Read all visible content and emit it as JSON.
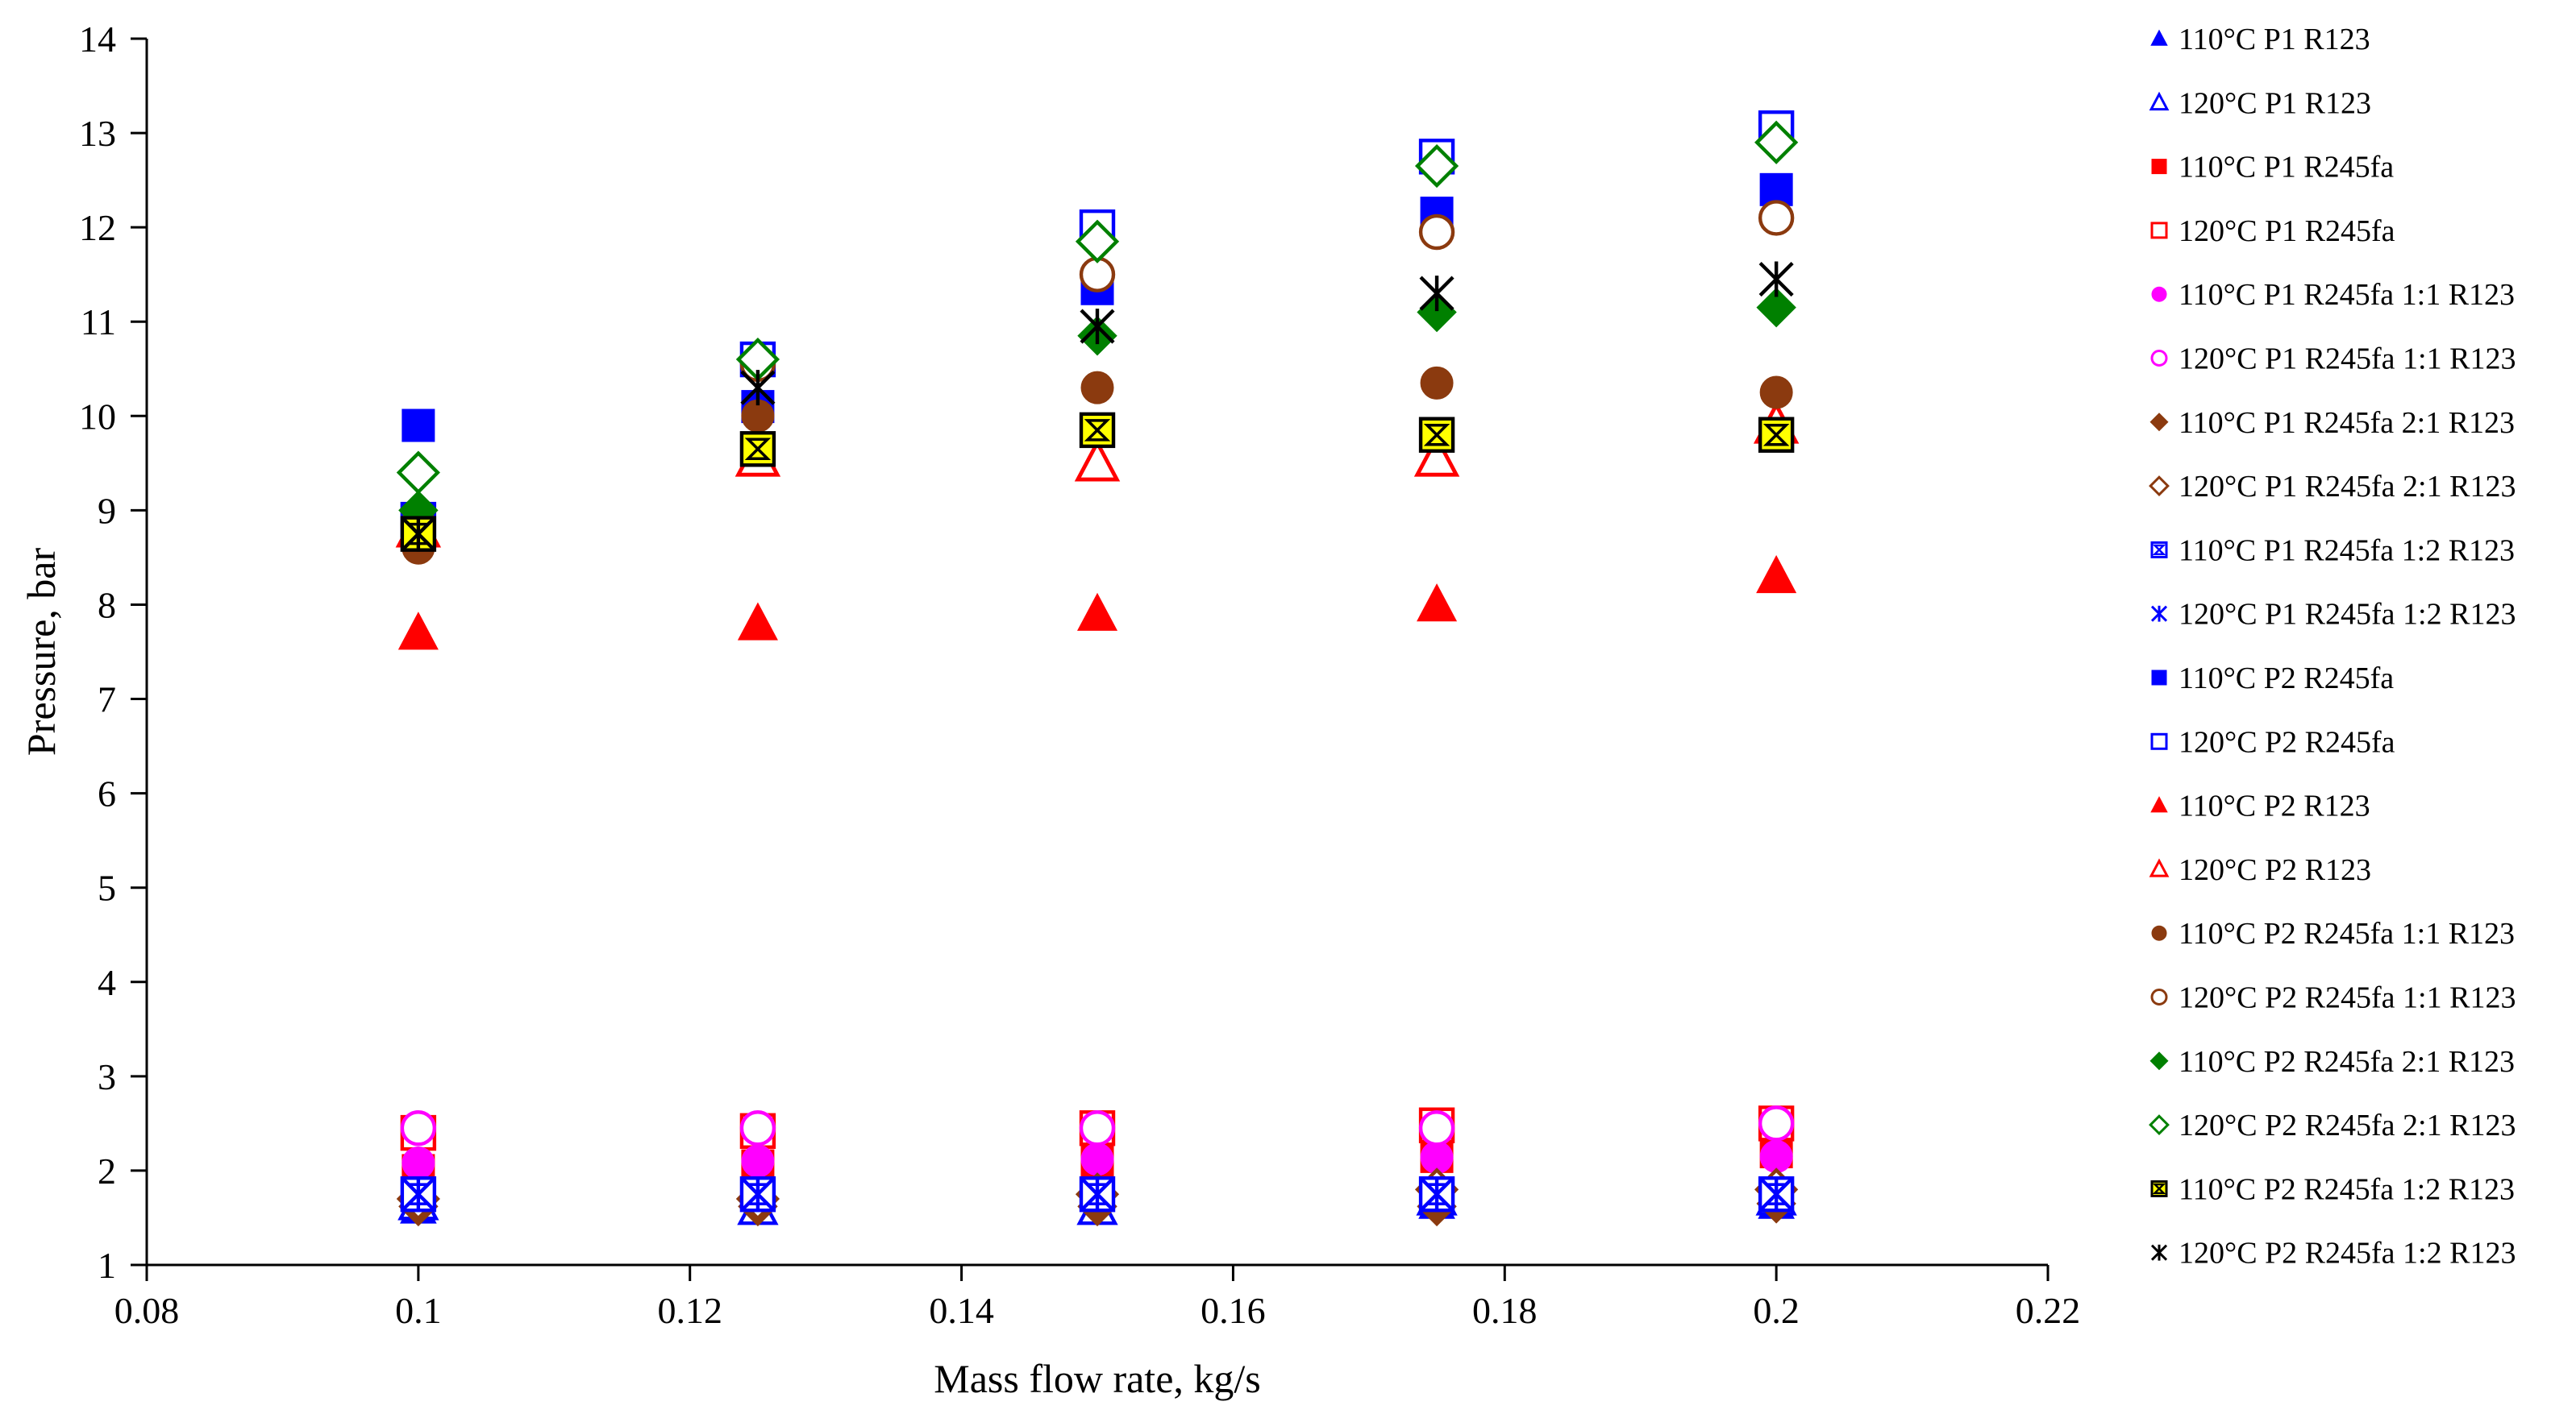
{
  "chart_data": {
    "type": "scatter",
    "title": "",
    "xlabel": "Mass flow rate, kg/s",
    "ylabel": "Pressure, bar",
    "xlim": [
      0.08,
      0.22
    ],
    "ylim": [
      1,
      14
    ],
    "xticks": [
      0.08,
      0.1,
      0.12,
      0.14,
      0.16,
      0.18,
      0.2,
      0.22
    ],
    "xtick_labels": [
      "0.08",
      "0.1",
      "0.12",
      "0.14",
      "0.16",
      "0.18",
      "0.2",
      "0.22"
    ],
    "yticks": [
      1,
      2,
      3,
      4,
      5,
      6,
      7,
      8,
      9,
      10,
      11,
      12,
      13,
      14
    ],
    "ytick_labels": [
      "1",
      "2",
      "3",
      "4",
      "5",
      "6",
      "7",
      "8",
      "9",
      "10",
      "11",
      "12",
      "13",
      "14"
    ],
    "grid": false,
    "legend_position": "right",
    "x": [
      0.1,
      0.125,
      0.15,
      0.175,
      0.2
    ],
    "series": [
      {
        "name": "110°C P1 R123",
        "marker": "triangle",
        "filled": true,
        "color": "#0000ff",
        "values": [
          1.6,
          1.6,
          1.6,
          1.65,
          1.65
        ]
      },
      {
        "name": "120°C P1 R123",
        "marker": "triangle",
        "filled": false,
        "color": "#0000ff",
        "values": [
          1.65,
          1.6,
          1.6,
          1.7,
          1.7
        ]
      },
      {
        "name": "110°C P1 R245fa",
        "marker": "square",
        "filled": true,
        "color": "#ff0000",
        "values": [
          2.0,
          2.05,
          2.1,
          2.15,
          2.2
        ]
      },
      {
        "name": "120°C P1 R245fa",
        "marker": "square",
        "filled": false,
        "color": "#ff0000",
        "values": [
          2.4,
          2.42,
          2.45,
          2.48,
          2.5
        ]
      },
      {
        "name": "110°C P1 R245fa 1:1 R123",
        "marker": "circle",
        "filled": true,
        "color": "#ff00ff",
        "values": [
          2.08,
          2.1,
          2.12,
          2.14,
          2.15
        ]
      },
      {
        "name": "120°C P1 R245fa 1:1 R123",
        "marker": "circle",
        "filled": false,
        "color": "#ff00ff",
        "values": [
          2.45,
          2.45,
          2.45,
          2.45,
          2.5
        ]
      },
      {
        "name": "110°C P1 R245fa 2:1 R123",
        "marker": "diamond",
        "filled": true,
        "color": "#8b3a0f",
        "values": [
          1.62,
          1.62,
          1.62,
          1.62,
          1.65
        ]
      },
      {
        "name": "120°C P1 R245fa 2:1 R123",
        "marker": "diamond",
        "filled": false,
        "color": "#8b3a0f",
        "values": [
          1.7,
          1.7,
          1.75,
          1.8,
          1.8
        ]
      },
      {
        "name": "110°C P1 R245fa 1:2 R123",
        "marker": "hourglass",
        "filled": false,
        "color": "#0000ff",
        "values": [
          1.75,
          1.75,
          1.75,
          1.75,
          1.75
        ]
      },
      {
        "name": "120°C P1 R245fa 1:2 R123",
        "marker": "star",
        "filled": false,
        "color": "#0000ff",
        "values": [
          1.75,
          1.75,
          1.75,
          1.75,
          1.75
        ]
      },
      {
        "name": "110°C P2 R245fa",
        "marker": "square",
        "filled": true,
        "color": "#0000ff",
        "values": [
          9.9,
          10.1,
          11.35,
          12.15,
          12.4
        ]
      },
      {
        "name": "120°C P2 R245fa",
        "marker": "square",
        "filled": false,
        "color": "#0000ff",
        "values": [
          8.9,
          10.6,
          12.0,
          12.75,
          13.05
        ]
      },
      {
        "name": "110°C P2 R123",
        "marker": "triangle",
        "filled": true,
        "color": "#ff0000",
        "values": [
          7.7,
          7.8,
          7.9,
          8.0,
          8.3
        ]
      },
      {
        "name": "120°C P2 R123",
        "marker": "triangle",
        "filled": false,
        "color": "#ff0000",
        "values": [
          8.8,
          9.55,
          9.5,
          9.55,
          9.9
        ]
      },
      {
        "name": "110°C P2 R245fa 1:1 R123",
        "marker": "circle",
        "filled": true,
        "color": "#8b3a0f",
        "values": [
          8.6,
          10.0,
          10.3,
          10.35,
          10.25
        ]
      },
      {
        "name": "120°C P2 R245fa 1:1 R123",
        "marker": "circle",
        "filled": false,
        "color": "#8b3a0f",
        "values": [
          8.85,
          10.55,
          11.5,
          11.95,
          12.1
        ]
      },
      {
        "name": "110°C P2 R245fa 2:1 R123",
        "marker": "diamond",
        "filled": true,
        "color": "#008000",
        "values": [
          9.0,
          10.6,
          10.85,
          11.1,
          11.15
        ]
      },
      {
        "name": "120°C P2 R245fa 2:1 R123",
        "marker": "diamond",
        "filled": false,
        "color": "#008000",
        "values": [
          9.4,
          10.6,
          11.85,
          12.65,
          12.9
        ]
      },
      {
        "name": "110°C P2 R245fa 1:2 R123",
        "marker": "hourglass",
        "filled": true,
        "color": "#000000",
        "fill": "#ffff00",
        "values": [
          8.75,
          9.65,
          9.85,
          9.8,
          9.8
        ]
      },
      {
        "name": "120°C P2 R245fa 1:2 R123",
        "marker": "star",
        "filled": false,
        "color": "#000000",
        "values": [
          8.75,
          10.3,
          10.95,
          11.3,
          11.45
        ]
      }
    ]
  }
}
